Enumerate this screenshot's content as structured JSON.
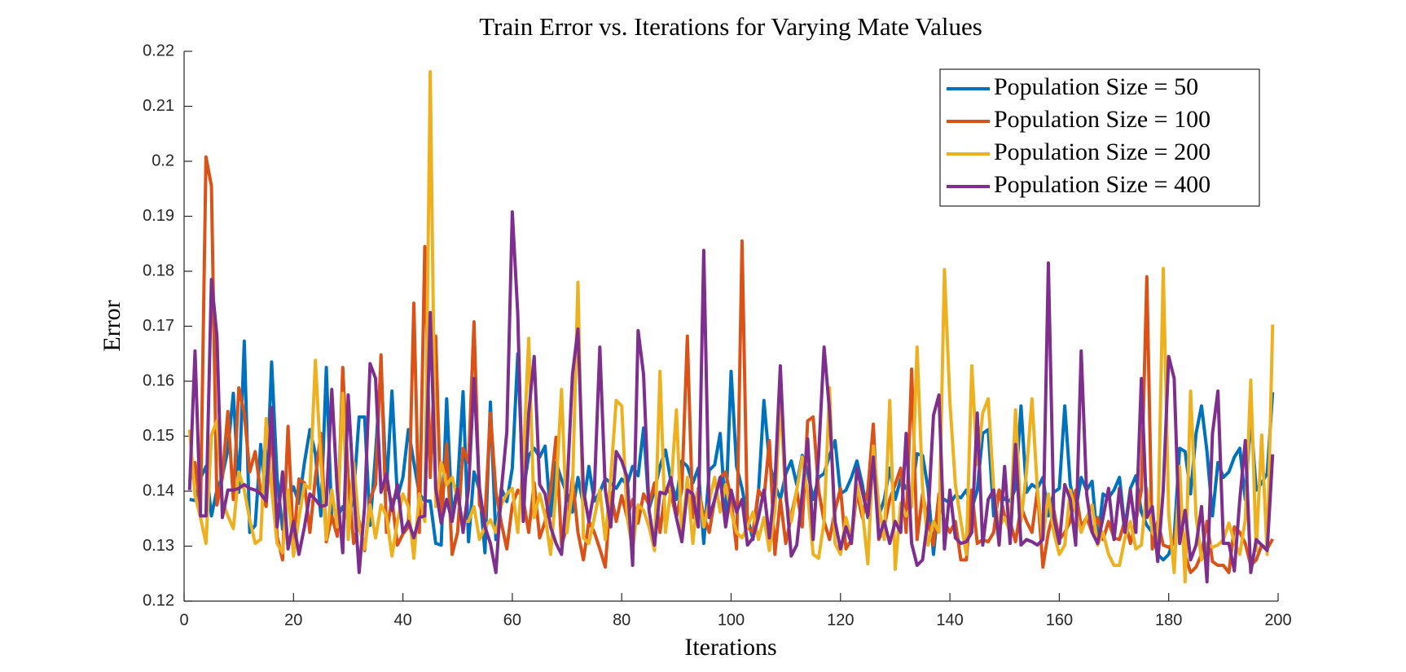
{
  "chart_data": {
    "type": "line",
    "title": "Train Error vs. Iterations for Varying Mate Values",
    "x_label": "Iterations",
    "y_label": "Error",
    "xlim": [
      0,
      200
    ],
    "xticks": [
      0,
      20,
      40,
      60,
      80,
      100,
      120,
      140,
      160,
      180,
      200
    ],
    "ylim": [
      0.12,
      0.22
    ],
    "yticks": [
      0.12,
      0.13,
      0.14,
      0.15,
      0.16,
      0.17,
      0.18,
      0.19,
      0.2,
      0.21,
      0.22
    ],
    "legend": "upper right",
    "x": [
      1,
      2,
      3,
      4,
      5,
      6,
      7,
      8,
      9,
      10,
      11,
      12,
      13,
      14,
      15,
      16,
      17,
      18,
      19,
      20,
      21,
      22,
      23,
      24,
      25,
      26,
      27,
      28,
      29,
      30,
      31,
      32,
      33,
      34,
      35,
      36,
      37,
      38,
      39,
      40,
      41,
      42,
      43,
      44,
      45,
      46,
      47,
      48,
      49,
      50,
      51,
      52,
      53,
      54,
      55,
      56,
      57,
      58,
      59,
      60,
      61,
      62,
      63,
      64,
      65,
      66,
      67,
      68,
      69,
      70,
      71,
      72,
      73,
      74,
      75,
      76,
      77,
      78,
      79,
      80,
      81,
      82,
      83,
      84,
      85,
      86,
      87,
      88,
      89,
      90,
      91,
      92,
      93,
      94,
      95,
      96,
      97,
      98,
      99,
      100,
      101,
      102,
      103,
      104,
      105,
      106,
      107,
      108,
      109,
      110,
      111,
      112,
      113,
      114,
      115,
      116,
      117,
      118,
      119,
      120,
      121,
      122,
      123,
      124,
      125,
      126,
      127,
      128,
      129,
      130,
      131,
      132,
      133,
      134,
      135,
      136,
      137,
      138,
      139,
      140,
      141,
      142,
      143,
      144,
      145,
      146,
      147,
      148,
      149,
      150,
      151,
      152,
      153,
      154,
      155,
      156,
      157,
      158,
      159,
      160,
      161,
      162,
      163,
      164,
      165,
      166,
      167,
      168,
      169,
      170,
      171,
      172,
      173,
      174,
      175,
      176,
      177,
      178,
      179,
      180,
      181,
      182,
      183,
      184,
      185,
      186,
      187,
      188,
      189,
      190,
      191,
      192,
      193,
      194,
      195,
      196,
      197,
      198,
      199
    ],
    "series": [
      {
        "name": "Population Size = 50",
        "color": "#0072BD",
        "values": [
          0.1385,
          0.1383,
          0.1424,
          0.1445,
          0.1355,
          0.1402,
          0.1428,
          0.1475,
          0.1578,
          0.1398,
          0.1673,
          0.1325,
          0.1338,
          0.1485,
          0.1382,
          0.1635,
          0.1425,
          0.1331,
          0.1385,
          0.1408,
          0.1378,
          0.1452,
          0.1512,
          0.1468,
          0.1355,
          0.1625,
          0.1344,
          0.1352,
          0.1372,
          0.1345,
          0.1395,
          0.1535,
          0.1535,
          0.1338,
          0.1468,
          0.1625,
          0.1402,
          0.1582,
          0.1388,
          0.1425,
          0.1512,
          0.1452,
          0.1395,
          0.1382,
          0.1382,
          0.1305,
          0.1302,
          0.1568,
          0.1352,
          0.1412,
          0.1581,
          0.1308,
          0.1435,
          0.1402,
          0.1288,
          0.1562,
          0.1312,
          0.1405,
          0.1381,
          0.1442,
          0.165,
          0.1398,
          0.1465,
          0.1478,
          0.1462,
          0.1482,
          0.1355,
          0.1452,
          0.1421,
          0.1395,
          0.1362,
          0.1425,
          0.1375,
          0.1445,
          0.1382,
          0.1398,
          0.1423,
          0.1415,
          0.1405,
          0.1422,
          0.1412,
          0.1445,
          0.1428,
          0.1515,
          0.1368,
          0.1402,
          0.1445,
          0.1475,
          0.1418,
          0.1385,
          0.1455,
          0.1445,
          0.1415,
          0.1442,
          0.1305,
          0.1438,
          0.1448,
          0.1505,
          0.1355,
          0.1618,
          0.1445,
          0.1405,
          0.1352,
          0.1312,
          0.1398,
          0.1565,
          0.1452,
          0.1412,
          0.1385,
          0.1432,
          0.1455,
          0.1412,
          0.1465,
          0.1435,
          0.1385,
          0.1425,
          0.1432,
          0.1465,
          0.1492,
          0.1395,
          0.1402,
          0.1425,
          0.1455,
          0.1412,
          0.1352,
          0.1472,
          0.1355,
          0.1385,
          0.1442,
          0.1385,
          0.1422,
          0.1405,
          0.1395,
          0.1468,
          0.1465,
          0.1405,
          0.1285,
          0.1385,
          0.1385,
          0.1378,
          0.1392,
          0.1388,
          0.1402,
          0.1368,
          0.1402,
          0.1505,
          0.1512,
          0.1355,
          0.1402,
          0.1385,
          0.1382,
          0.1405,
          0.1555,
          0.1398,
          0.1412,
          0.1405,
          0.1425,
          0.1355,
          0.1398,
          0.1405,
          0.1555,
          0.1412,
          0.1365,
          0.1425,
          0.1402,
          0.1418,
          0.1305,
          0.1395,
          0.1388,
          0.1402,
          0.1425,
          0.1332,
          0.1405,
          0.1428,
          0.1362,
          0.1338,
          0.1325,
          0.1285,
          0.1275,
          0.1285,
          0.1315,
          0.1478,
          0.1472,
          0.1395,
          0.1505,
          0.1555,
          0.1472,
          0.1355,
          0.1452,
          0.1425,
          0.1435,
          0.1462,
          0.1478,
          0.1385,
          0.1535,
          0.1402,
          0.1415,
          0.1432,
          0.158
        ]
      },
      {
        "name": "Population Size = 100",
        "color": "#D95319",
        "values": [
          0.1418,
          0.1452,
          0.1365,
          0.2008,
          0.1955,
          0.1375,
          0.1425,
          0.1545,
          0.1385,
          0.1588,
          0.1542,
          0.1435,
          0.1472,
          0.1398,
          0.1372,
          0.1515,
          0.1318,
          0.1275,
          0.1518,
          0.1305,
          0.1422,
          0.1415,
          0.1325,
          0.1425,
          0.1505,
          0.1308,
          0.1355,
          0.1318,
          0.1625,
          0.1425,
          0.1305,
          0.1345,
          0.1292,
          0.1385,
          0.1412,
          0.1648,
          0.1325,
          0.1385,
          0.1302,
          0.1322,
          0.1335,
          0.1742,
          0.1325,
          0.1845,
          0.1425,
          0.1682,
          0.1345,
          0.1485,
          0.1285,
          0.1325,
          0.1478,
          0.1452,
          0.1708,
          0.1375,
          0.1352,
          0.1542,
          0.1398,
          0.1342,
          0.1295,
          0.1375,
          0.1402,
          0.1385,
          0.1325,
          0.1415,
          0.1315,
          0.1345,
          0.1402,
          0.1498,
          0.1302,
          0.1335,
          0.1425,
          0.1325,
          0.1275,
          0.1345,
          0.1325,
          0.1295,
          0.1262,
          0.1398,
          0.1345,
          0.1392,
          0.1352,
          0.1385,
          0.1342,
          0.1395,
          0.1375,
          0.1415,
          0.1325,
          0.1405,
          0.1395,
          0.1352,
          0.1405,
          0.1682,
          0.1352,
          0.1405,
          0.1355,
          0.1325,
          0.1385,
          0.1425,
          0.1435,
          0.1385,
          0.1295,
          0.1855,
          0.1335,
          0.1325,
          0.1402,
          0.1385,
          0.1492,
          0.1285,
          0.1385,
          0.1305,
          0.1355,
          0.1402,
          0.1335,
          0.1528,
          0.1535,
          0.1402,
          0.1345,
          0.1312,
          0.1365,
          0.1405,
          0.1295,
          0.1312,
          0.1398,
          0.1352,
          0.1402,
          0.1522,
          0.1312,
          0.1335,
          0.1385,
          0.1412,
          0.1442,
          0.1325,
          0.1622,
          0.1312,
          0.1395,
          0.1345,
          0.1302,
          0.1395,
          0.1345,
          0.1325,
          0.1345,
          0.1275,
          0.1275,
          0.1402,
          0.1305,
          0.1312,
          0.1308,
          0.1325,
          0.1402,
          0.1355,
          0.1345,
          0.1308,
          0.1372,
          0.1345,
          0.1325,
          0.1402,
          0.1262,
          0.1325,
          0.1365,
          0.1312,
          0.1325,
          0.1345,
          0.1402,
          0.1335,
          0.1352,
          0.1325,
          0.1352,
          0.1312,
          0.1345,
          0.1315,
          0.1312,
          0.1348,
          0.1305,
          0.1345,
          0.1402,
          0.179,
          0.1295,
          0.1345,
          0.1302,
          0.1298,
          0.1305,
          0.1385,
          0.1285,
          0.1252,
          0.1262,
          0.1285,
          0.1345,
          0.1272,
          0.1265,
          0.1265,
          0.1252,
          0.1335,
          0.1325,
          0.1305,
          0.1265,
          0.1275,
          0.1302,
          0.1295,
          0.1313
        ]
      },
      {
        "name": "Population Size = 200",
        "color": "#EDB120",
        "values": [
          0.1512,
          0.1392,
          0.1352,
          0.1305,
          0.1502,
          0.1528,
          0.1382,
          0.1355,
          0.1332,
          0.1435,
          0.1402,
          0.1348,
          0.1305,
          0.1312,
          0.1532,
          0.1405,
          0.1305,
          0.1288,
          0.1402,
          0.1282,
          0.1352,
          0.1412,
          0.1405,
          0.1638,
          0.1452,
          0.1312,
          0.1402,
          0.1335,
          0.1578,
          0.1312,
          0.1452,
          0.1335,
          0.1295,
          0.1375,
          0.1315,
          0.1375,
          0.1355,
          0.1282,
          0.1345,
          0.1395,
          0.1372,
          0.1278,
          0.1395,
          0.1345,
          0.2163,
          0.1372,
          0.1452,
          0.1412,
          0.1425,
          0.1385,
          0.1345,
          0.1345,
          0.1372,
          0.1312,
          0.1335,
          0.1348,
          0.1325,
          0.1375,
          0.1395,
          0.1405,
          0.1325,
          0.1452,
          0.1678,
          0.1352,
          0.1395,
          0.1355,
          0.1285,
          0.1402,
          0.1585,
          0.1325,
          0.1402,
          0.178,
          0.1315,
          0.1305,
          0.1352,
          0.1402,
          0.1312,
          0.1425,
          0.1565,
          0.1555,
          0.1352,
          0.1295,
          0.1375,
          0.1365,
          0.1335,
          0.1292,
          0.1618,
          0.1325,
          0.1405,
          0.1548,
          0.1312,
          0.1425,
          0.1305,
          0.1402,
          0.1335,
          0.1382,
          0.1425,
          0.1362,
          0.1412,
          0.1362,
          0.1325,
          0.1315,
          0.1335,
          0.1362,
          0.1312,
          0.1352,
          0.1292,
          0.1365,
          0.1568,
          0.1385,
          0.1345,
          0.1402,
          0.1462,
          0.1395,
          0.1285,
          0.1278,
          0.1345,
          0.1588,
          0.1305,
          0.1285,
          0.1352,
          0.1312,
          0.1412,
          0.1365,
          0.1268,
          0.1482,
          0.1375,
          0.1312,
          0.1565,
          0.1258,
          0.1378,
          0.1355,
          0.1372,
          0.1662,
          0.1405,
          0.1302,
          0.1345,
          0.1325,
          0.1803,
          0.1562,
          0.1412,
          0.1345,
          0.1285,
          0.1628,
          0.1448,
          0.1542,
          0.1568,
          0.1405,
          0.1335,
          0.1352,
          0.1325,
          0.1548,
          0.1345,
          0.1435,
          0.1568,
          0.1402,
          0.1312,
          0.1395,
          0.1325,
          0.1285,
          0.1302,
          0.1402,
          0.1362,
          0.1325,
          0.1352,
          0.1375,
          0.1302,
          0.1325,
          0.1285,
          0.1265,
          0.1265,
          0.1315,
          0.1345,
          0.1295,
          0.1302,
          0.1405,
          0.1325,
          0.1312,
          0.1805,
          0.1358,
          0.1252,
          0.1445,
          0.1235,
          0.1582,
          0.1355,
          0.1275,
          0.1305,
          0.1298,
          0.1302,
          0.1312,
          0.1342,
          0.1308,
          0.1285,
          0.1348,
          0.1602,
          0.1292,
          0.1502,
          0.1285,
          0.1703
        ]
      },
      {
        "name": "Population Size = 400",
        "color": "#7E2F8E",
        "values": [
          0.1402,
          0.1655,
          0.1355,
          0.1355,
          0.1785,
          0.1682,
          0.1352,
          0.1402,
          0.1402,
          0.1405,
          0.1412,
          0.1405,
          0.1402,
          0.1395,
          0.1382,
          0.1552,
          0.1335,
          0.1435,
          0.1295,
          0.1345,
          0.1285,
          0.1335,
          0.1395,
          0.1385,
          0.1372,
          0.1375,
          0.1585,
          0.1402,
          0.1288,
          0.1575,
          0.1402,
          0.1252,
          0.1372,
          0.1632,
          0.1605,
          0.1398,
          0.1432,
          0.1365,
          0.1412,
          0.1325,
          0.1345,
          0.1315,
          0.1352,
          0.1355,
          0.1725,
          0.1405,
          0.1342,
          0.1385,
          0.1345,
          0.1405,
          0.1325,
          0.1405,
          0.1605,
          0.1405,
          0.1335,
          0.1305,
          0.1252,
          0.1402,
          0.1508,
          0.1908,
          0.1722,
          0.1345,
          0.1542,
          0.1645,
          0.1412,
          0.1395,
          0.1335,
          0.1305,
          0.1285,
          0.1402,
          0.1612,
          0.1695,
          0.1402,
          0.1345,
          0.1402,
          0.1662,
          0.1402,
          0.1335,
          0.1472,
          0.1455,
          0.1425,
          0.1265,
          0.1692,
          0.1612,
          0.1365,
          0.1302,
          0.1398,
          0.1395,
          0.1425,
          0.1352,
          0.1308,
          0.1402,
          0.1395,
          0.1335,
          0.1838,
          0.1352,
          0.1385,
          0.1425,
          0.1335,
          0.1402,
          0.1362,
          0.1385,
          0.1302,
          0.1315,
          0.1352,
          0.1402,
          0.1315,
          0.1412,
          0.1628,
          0.1402,
          0.1282,
          0.1302,
          0.1395,
          0.1495,
          0.1312,
          0.1465,
          0.1662,
          0.1545,
          0.1345,
          0.1295,
          0.1335,
          0.1305,
          0.1442,
          0.1398,
          0.1355,
          0.1462,
          0.1315,
          0.1345,
          0.1305,
          0.1345,
          0.1325,
          0.1505,
          0.1305,
          0.1265,
          0.1275,
          0.1352,
          0.1538,
          0.1575,
          0.1295,
          0.1402,
          0.1315,
          0.1305,
          0.1308,
          0.1325,
          0.1542,
          0.1302,
          0.1385,
          0.1402,
          0.1302,
          0.1445,
          0.1305,
          0.1485,
          0.1302,
          0.1312,
          0.1308,
          0.1302,
          0.1312,
          0.1815,
          0.1352,
          0.1305,
          0.1412,
          0.1385,
          0.1302,
          0.1655,
          0.1395,
          0.1325,
          0.1305,
          0.1352,
          0.1405,
          0.1312,
          0.1405,
          0.1325,
          0.1402,
          0.1325,
          0.1605,
          0.1352,
          0.1372,
          0.1272,
          0.1402,
          0.1645,
          0.1605,
          0.1305,
          0.1365,
          0.1275,
          0.1302,
          0.1372,
          0.1235,
          0.1505,
          0.1582,
          0.1305,
          0.1305,
          0.1255,
          0.1385,
          0.1492,
          0.1252,
          0.1312,
          0.1302,
          0.1292,
          0.1467
        ]
      }
    ]
  }
}
